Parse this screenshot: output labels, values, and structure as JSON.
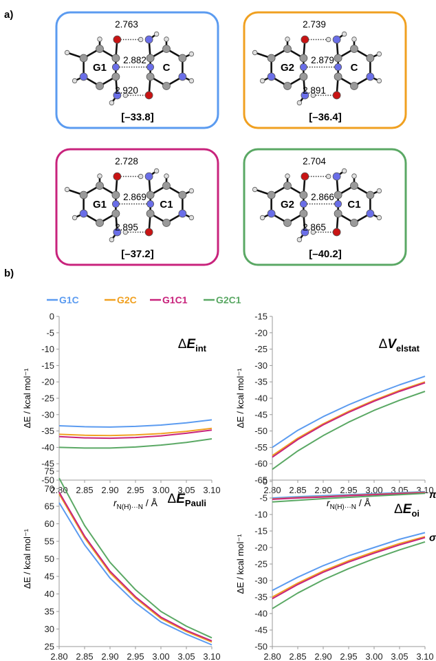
{
  "panel_labels": [
    "a)",
    "b)"
  ],
  "colors": {
    "G1C": "#5b9bf0",
    "G2C": "#f0a020",
    "G1C1": "#c8237c",
    "G2C1": "#5aa864",
    "N": "#6a6ee8",
    "O": "#c81414",
    "C": "#9a9a9a",
    "H": "#e0e0e0"
  },
  "structures": [
    {
      "base_left": "G1",
      "base_right": "C",
      "distances": [
        "2.763",
        "2.882",
        "2.920"
      ],
      "energy": "[–33.8]",
      "frame_color": "#5b9bf0"
    },
    {
      "base_left": "G2",
      "base_right": "C",
      "distances": [
        "2.739",
        "2.879",
        "2.891"
      ],
      "energy": "[–36.4]",
      "frame_color": "#f0a020"
    },
    {
      "base_left": "G1",
      "base_right": "C1",
      "distances": [
        "2.728",
        "2.869",
        "2.895"
      ],
      "energy": "[–37.2]",
      "frame_color": "#c8237c"
    },
    {
      "base_left": "G2",
      "base_right": "C1",
      "distances": [
        "2.704",
        "2.866",
        "2.865"
      ],
      "energy": "[–40.2]",
      "frame_color": "#5aa864"
    }
  ],
  "legend": [
    {
      "name": "G1C",
      "color": "#5b9bf0"
    },
    {
      "name": "G2C",
      "color": "#f0a020"
    },
    {
      "name": "G1C1",
      "color": "#c8237c"
    },
    {
      "name": "G2C1",
      "color": "#5aa864"
    }
  ],
  "chart_data": [
    {
      "type": "line",
      "title": "ΔE_int",
      "xlabel": "r_N(H)···N / Å",
      "ylabel": "ΔE / kcal mol⁻¹",
      "xlim": [
        2.8,
        3.1
      ],
      "ylim": [
        -50,
        0
      ],
      "x_ticks": [
        "2.80",
        "2.85",
        "2.90",
        "2.95",
        "3.00",
        "3.05",
        "3.10"
      ],
      "y_ticks": [
        "0",
        "-5",
        "-10",
        "-15",
        "-20",
        "-25",
        "-30",
        "-35",
        "-40",
        "-45",
        "-50"
      ],
      "x": [
        2.8,
        2.85,
        2.9,
        2.95,
        3.0,
        3.05,
        3.1
      ],
      "series": [
        {
          "name": "G1C",
          "color": "#5b9bf0",
          "values": [
            -33.4,
            -33.7,
            -33.8,
            -33.6,
            -33.2,
            -32.5,
            -31.6
          ]
        },
        {
          "name": "G2C",
          "color": "#f0a020",
          "values": [
            -36.0,
            -36.3,
            -36.4,
            -36.2,
            -35.8,
            -35.1,
            -34.2
          ]
        },
        {
          "name": "G1C1",
          "color": "#c8237c",
          "values": [
            -36.7,
            -37.1,
            -37.2,
            -37.0,
            -36.5,
            -35.7,
            -34.7
          ]
        },
        {
          "name": "G2C1",
          "color": "#5aa864",
          "values": [
            -40.0,
            -40.2,
            -40.2,
            -39.9,
            -39.3,
            -38.5,
            -37.4
          ]
        }
      ]
    },
    {
      "type": "line",
      "title": "ΔV_elstat",
      "xlabel": "r_N(H)···N / Å",
      "ylabel": "ΔE / kcal mol⁻¹",
      "xlim": [
        2.8,
        3.1
      ],
      "ylim": [
        -65,
        -15
      ],
      "x_ticks": [
        "2.80",
        "2.85",
        "2.90",
        "2.95",
        "3.00",
        "3.05",
        "3.10"
      ],
      "y_ticks": [
        "-15",
        "-20",
        "-25",
        "-30",
        "-35",
        "-40",
        "-45",
        "-50",
        "-55",
        "-60",
        "-65"
      ],
      "x": [
        2.8,
        2.85,
        2.9,
        2.95,
        3.0,
        3.05,
        3.1
      ],
      "series": [
        {
          "name": "G1C",
          "color": "#5b9bf0",
          "values": [
            -55.0,
            -49.8,
            -45.6,
            -42.0,
            -38.8,
            -35.9,
            -33.3
          ]
        },
        {
          "name": "G2C",
          "color": "#f0a020",
          "values": [
            -57.5,
            -52.2,
            -47.8,
            -44.0,
            -40.6,
            -37.6,
            -35.0
          ]
        },
        {
          "name": "G1C1",
          "color": "#c8237c",
          "values": [
            -58.0,
            -52.6,
            -48.1,
            -44.3,
            -40.9,
            -37.9,
            -35.3
          ]
        },
        {
          "name": "G2C1",
          "color": "#5aa864",
          "values": [
            -61.7,
            -56.1,
            -51.4,
            -47.3,
            -43.7,
            -40.6,
            -37.9
          ]
        }
      ]
    },
    {
      "type": "line",
      "title": "ΔE_Pauli",
      "xlabel": "r_N(H)···N / Å",
      "ylabel": "ΔE / kcal mol⁻¹",
      "xlim": [
        2.8,
        3.1
      ],
      "ylim": [
        25,
        75
      ],
      "x_ticks": [
        "2.80",
        "2.85",
        "2.90",
        "2.95",
        "3.00",
        "3.05",
        "3.10"
      ],
      "y_ticks": [
        "75",
        "70",
        "65",
        "60",
        "55",
        "50",
        "45",
        "40",
        "35",
        "30",
        "25"
      ],
      "x": [
        2.8,
        2.85,
        2.9,
        2.95,
        3.0,
        3.05,
        3.1
      ],
      "series": [
        {
          "name": "G1C",
          "color": "#5b9bf0",
          "values": [
            66.0,
            54.0,
            44.5,
            37.5,
            32.0,
            28.5,
            25.5
          ]
        },
        {
          "name": "G2C",
          "color": "#f0a020",
          "values": [
            68.5,
            56.0,
            46.0,
            38.8,
            33.0,
            29.3,
            26.3
          ]
        },
        {
          "name": "G1C1",
          "color": "#c8237c",
          "values": [
            69.0,
            56.5,
            46.5,
            39.2,
            33.4,
            29.6,
            26.6
          ]
        },
        {
          "name": "G2C1",
          "color": "#5aa864",
          "values": [
            73.0,
            59.5,
            49.0,
            41.2,
            35.0,
            30.8,
            27.5
          ]
        }
      ]
    },
    {
      "type": "line",
      "title": "ΔE_oi",
      "xlabel": "r_N(H)···N / Å",
      "ylabel": "ΔE / kcal mol⁻¹",
      "xlim": [
        2.8,
        3.1
      ],
      "ylim": [
        -50,
        0
      ],
      "x_ticks": [
        "2.80",
        "2.85",
        "2.90",
        "2.95",
        "3.00",
        "3.05",
        "3.10"
      ],
      "y_ticks": [
        "0",
        "-5",
        "-10",
        "-15",
        "-20",
        "-25",
        "-30",
        "-35",
        "-40",
        "-45",
        "-50"
      ],
      "annotations": [
        "π",
        "σ"
      ],
      "x": [
        2.8,
        2.85,
        2.9,
        2.95,
        3.0,
        3.05,
        3.1
      ],
      "series": [
        {
          "name": "G1C",
          "color": "#5b9bf0",
          "values": [
            -33.0,
            -29.0,
            -25.5,
            -22.5,
            -20.0,
            -17.5,
            -15.5
          ]
        },
        {
          "name": "G2C",
          "color": "#f0a020",
          "values": [
            -35.0,
            -30.8,
            -27.1,
            -24.0,
            -21.3,
            -18.8,
            -16.7
          ]
        },
        {
          "name": "G1C1",
          "color": "#c8237c",
          "values": [
            -35.5,
            -31.2,
            -27.5,
            -24.4,
            -21.7,
            -19.2,
            -17.0
          ]
        },
        {
          "name": "G2C1",
          "color": "#5aa864",
          "values": [
            -38.5,
            -33.8,
            -29.8,
            -26.4,
            -23.4,
            -20.7,
            -18.3
          ]
        },
        {
          "name": "G1C",
          "color": "#5b9bf0",
          "values": [
            -5.0,
            -4.6,
            -4.3,
            -4.0,
            -3.7,
            -3.4,
            -3.1
          ]
        },
        {
          "name": "G2C",
          "color": "#f0a020",
          "values": [
            -5.3,
            -4.9,
            -4.6,
            -4.2,
            -3.9,
            -3.6,
            -3.3
          ]
        },
        {
          "name": "G1C1",
          "color": "#c8237c",
          "values": [
            -5.4,
            -5.0,
            -4.7,
            -4.3,
            -4.0,
            -3.7,
            -3.4
          ]
        },
        {
          "name": "G2C1",
          "color": "#5aa864",
          "values": [
            -6.2,
            -5.7,
            -5.2,
            -4.8,
            -4.4,
            -4.0,
            -3.6
          ]
        }
      ]
    }
  ]
}
